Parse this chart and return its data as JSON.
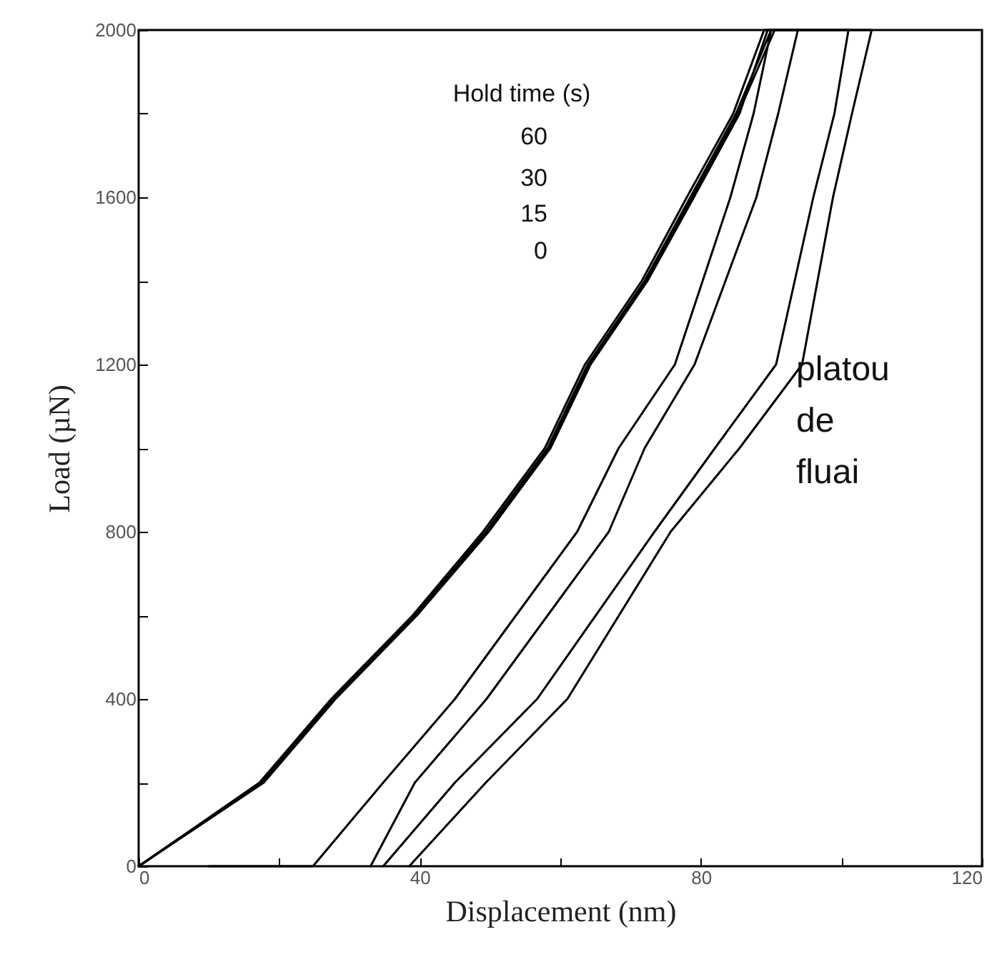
{
  "chart_data": {
    "type": "line",
    "xlabel": "Displacement (nm)",
    "ylabel": "Load (µN)",
    "xlim": [
      0,
      120
    ],
    "ylim": [
      0,
      2000
    ],
    "xticks": [
      0,
      {
        "value": 20,
        "label": null
      },
      40,
      {
        "value": 60,
        "label": null
      },
      80,
      {
        "value": 100,
        "label": null
      },
      120
    ],
    "yticks": [
      0,
      {
        "value": 200,
        "label": null
      },
      400,
      {
        "value": 600,
        "label": null
      },
      800,
      {
        "value": 1000,
        "label": null
      },
      1200,
      {
        "value": 1400,
        "label": null
      },
      1600,
      {
        "value": 1800,
        "label": null
      },
      2000
    ],
    "grid": false,
    "legend": false,
    "line_style": "solid",
    "annotations": [
      "Hold time (s)",
      "60",
      "30",
      "15",
      "0",
      "platou de fluai"
    ],
    "series": [
      {
        "color": "#000000",
        "x": [
          0,
          17.5,
          27.7,
          39.3,
          49.4,
          58.2,
          63.9,
          72,
          78.5,
          85,
          90,
          87.5,
          84.2,
          76.3,
          68.3,
          62.4,
          45,
          34.8,
          24.8,
          10
        ],
        "values": [
          0,
          200,
          400,
          600,
          800,
          1000,
          1200,
          1400,
          1600,
          1800,
          2000,
          1800,
          1600,
          1200,
          1000,
          800,
          400,
          200,
          0,
          0
        ]
      },
      {
        "color": "#000000",
        "x": [
          0,
          17.8,
          28,
          39.6,
          49.8,
          58.6,
          64.3,
          72.4,
          79,
          85.5,
          89.5,
          93.8,
          91,
          87.9,
          79.1,
          72,
          66.9,
          49.5,
          39.3,
          33
        ],
        "values": [
          0,
          200,
          400,
          600,
          800,
          1000,
          1200,
          1400,
          1600,
          1800,
          2000,
          2000,
          1800,
          1600,
          1200,
          1000,
          800,
          400,
          200,
          0
        ]
      },
      {
        "color": "#000000",
        "x": [
          0,
          17.2,
          27.4,
          39,
          49,
          57.8,
          63.5,
          71.6,
          78,
          84.6,
          89,
          101,
          99,
          96,
          90.7,
          82,
          73.4,
          56.7,
          45,
          34.8
        ],
        "values": [
          0,
          200,
          400,
          600,
          800,
          1000,
          1200,
          1400,
          1600,
          1800,
          2000,
          2000,
          1800,
          1600,
          1200,
          1000,
          800,
          400,
          200,
          0
        ]
      },
      {
        "color": "#000000",
        "x": [
          0,
          17.6,
          27.9,
          39.5,
          49.6,
          58.4,
          64.1,
          72.2,
          78.8,
          85.3,
          90.5,
          104.3,
          101.5,
          98.8,
          94.4,
          85.5,
          75.7,
          61,
          49.4,
          38.5
        ],
        "values": [
          0,
          200,
          400,
          600,
          800,
          1000,
          1200,
          1400,
          1600,
          1800,
          2000,
          2000,
          1800,
          1600,
          1200,
          1000,
          800,
          400,
          200,
          0
        ]
      }
    ]
  }
}
